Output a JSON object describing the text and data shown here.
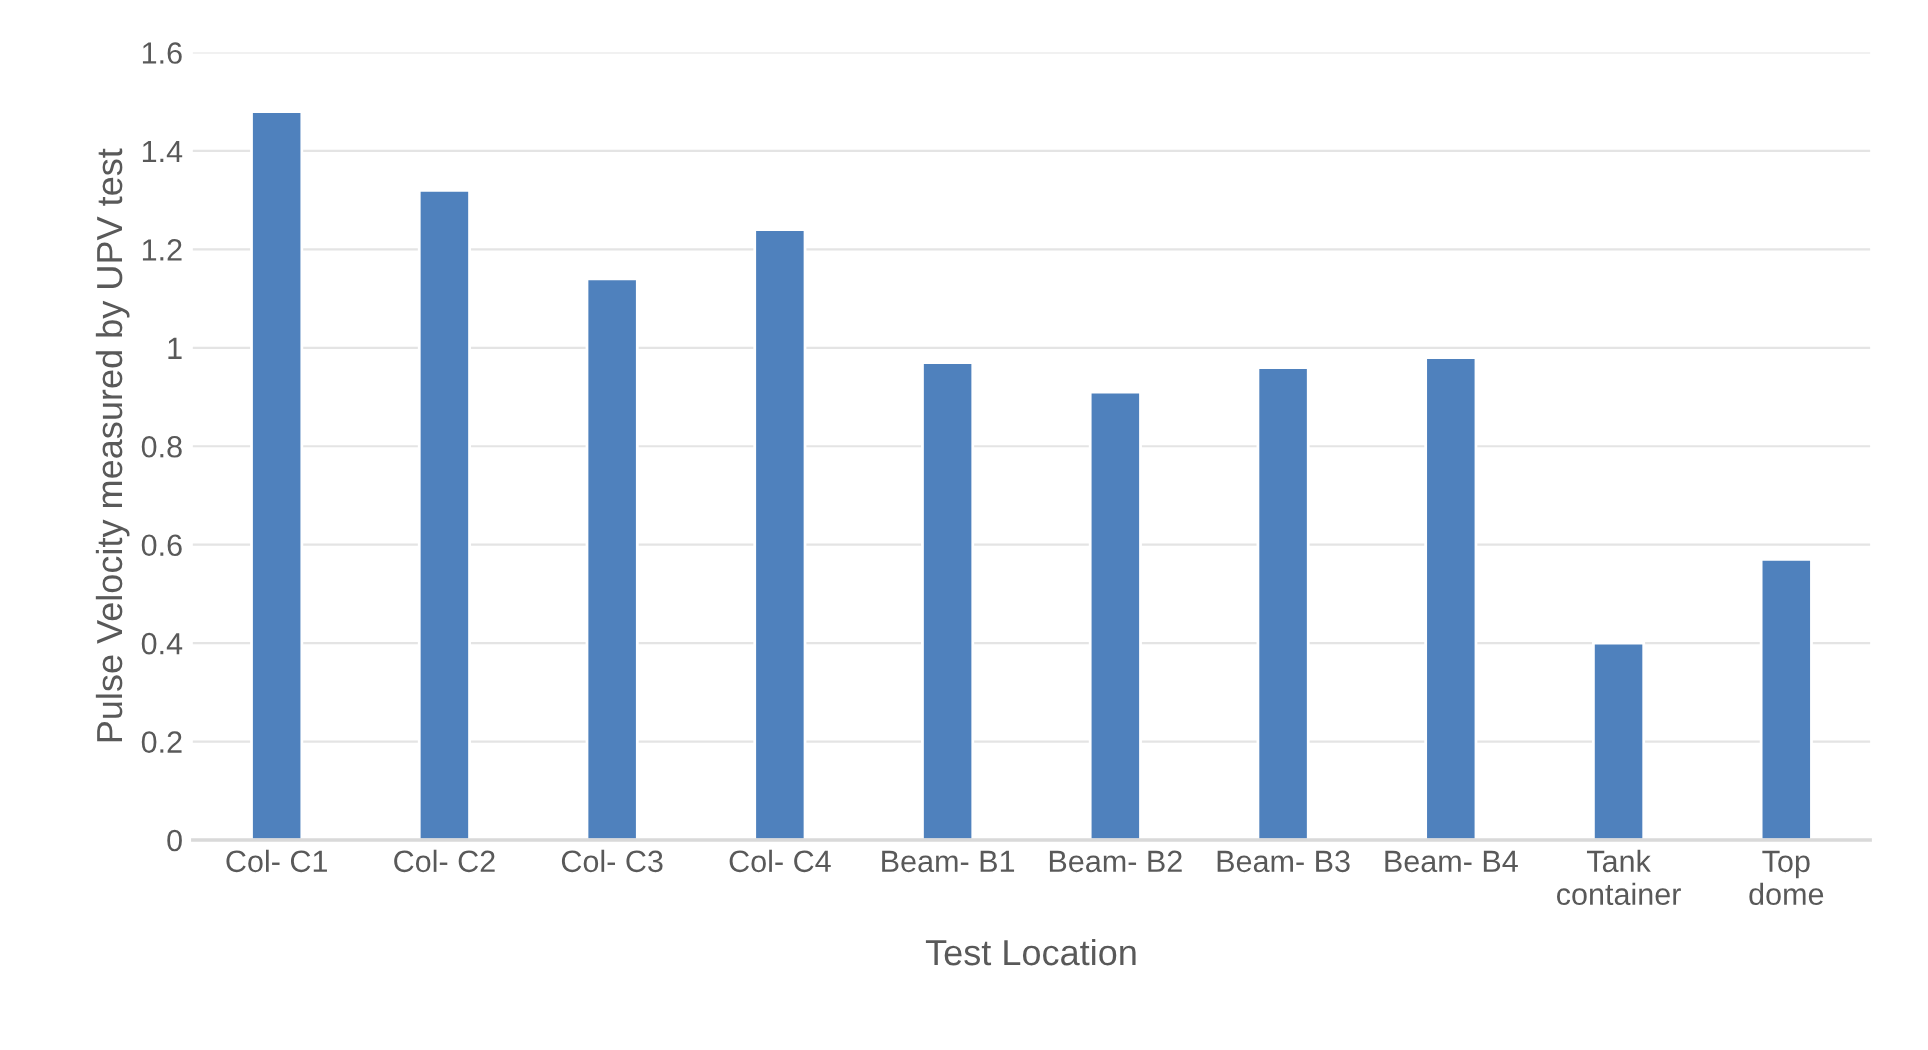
{
  "chart_data": {
    "type": "bar",
    "xlabel": "Test Location",
    "ylabel": "Pulse Velocity measured by UPV test",
    "categories": [
      "Col- C1",
      "Col- C2",
      "Col- C3",
      "Col- C4",
      "Beam- B1",
      "Beam- B2",
      "Beam- B3",
      "Beam- B4",
      "Tank\ncontainer",
      "Top\ndome"
    ],
    "values": [
      1.48,
      1.32,
      1.14,
      1.24,
      0.97,
      0.91,
      0.96,
      0.98,
      0.4,
      0.57
    ],
    "color": "#4f81bd",
    "ylim": [
      0,
      1.6
    ],
    "yticks": [
      0,
      0.2,
      0.4,
      0.6,
      0.8,
      1,
      1.2,
      1.4,
      1.6
    ],
    "grid": "y"
  }
}
